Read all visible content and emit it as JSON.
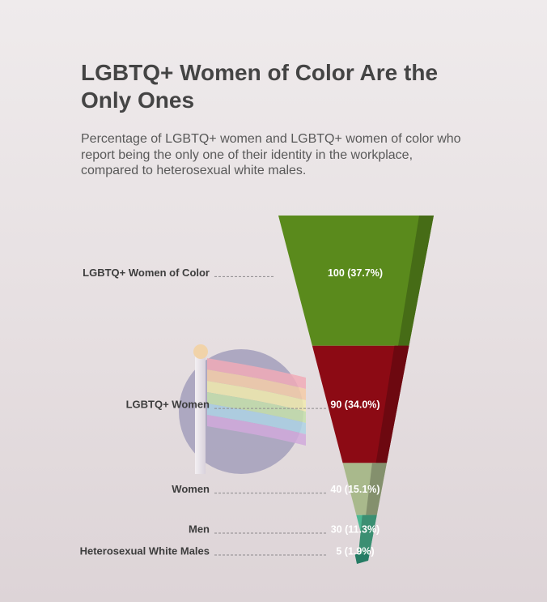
{
  "header": {
    "title": "LGBTQ+ Women of Color Are the Only Ones",
    "subtitle": "Percentage of LGBTQ+ women and LGBTQ+ women of color who report being the only one of their identity in the workplace, compared to heterosexual white males."
  },
  "decoration": {
    "icon": "pride-flag-icon"
  },
  "chart_data": {
    "type": "funnel",
    "title": "LGBTQ+ Women of Color Are the Only Ones",
    "subtitle": "Percentage of LGBTQ+ women and LGBTQ+ women of color who report being the only one of their identity in the workplace, compared to heterosexual white males.",
    "categories": [
      "LGBTQ+ Women of Color",
      "LGBTQ+ Women",
      "Women",
      "Men",
      "Heterosexual White Males"
    ],
    "values": [
      100,
      90,
      40,
      30,
      5
    ],
    "percent_labels": [
      "100 (37.7%)",
      "90 (34.0%)",
      "40 (15.1%)",
      "30 (11.3%)",
      "5 (1.9%)"
    ],
    "colors": [
      "#5a8a1c",
      "#8c0a14",
      "#a9b98c",
      "#4cb792",
      "#2f9f80"
    ],
    "legend": "none",
    "grid": false
  }
}
